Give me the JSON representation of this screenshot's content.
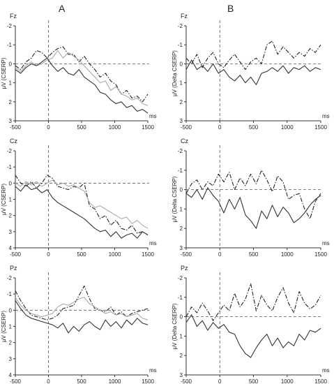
{
  "columns": [
    {
      "label": "A"
    },
    {
      "label": "B"
    }
  ],
  "chart_data": [
    {
      "type": "line",
      "column": "A",
      "channel": "Fz",
      "ylabel": "μV (CSERP)",
      "xunit": "ms",
      "xlim": [
        -500,
        1500
      ],
      "ylim": [
        -2,
        3
      ],
      "y_inverted": true,
      "yticks": [
        -2,
        -1,
        0,
        1,
        2,
        3
      ],
      "xticks": [
        -500,
        0,
        500,
        1000,
        1500
      ],
      "series": [
        {
          "style": "dashdot",
          "color": "#222222",
          "x": [
            -500,
            -420,
            -340,
            -260,
            -180,
            -100,
            -20,
            60,
            140,
            220,
            300,
            380,
            460,
            540,
            620,
            700,
            780,
            860,
            940,
            1020,
            1100,
            1180,
            1260,
            1340,
            1420,
            1500
          ],
          "y": [
            0.1,
            0.3,
            -0.1,
            -0.3,
            -0.7,
            -0.6,
            -0.3,
            -0.6,
            -0.8,
            -0.9,
            -0.5,
            -0.5,
            -0.1,
            -0.4,
            0.0,
            0.3,
            0.7,
            0.5,
            0.9,
            1.1,
            1.6,
            1.4,
            1.8,
            1.7,
            2.0,
            1.6
          ]
        },
        {
          "style": "solid",
          "color": "#aaaaaa",
          "x": [
            -500,
            -420,
            -340,
            -260,
            -180,
            -100,
            -20,
            60,
            140,
            220,
            300,
            380,
            460,
            540,
            620,
            700,
            780,
            860,
            940,
            1020,
            1100,
            1180,
            1260,
            1340,
            1420,
            1500
          ],
          "y": [
            0.2,
            0.4,
            0.1,
            -0.1,
            0.1,
            0.0,
            -0.2,
            -0.3,
            -0.7,
            -0.3,
            -0.6,
            -0.4,
            -0.2,
            0.1,
            0.4,
            0.7,
            1.0,
            0.9,
            1.4,
            1.2,
            1.6,
            1.7,
            1.9,
            1.8,
            2.1,
            2.2
          ]
        },
        {
          "style": "solid",
          "color": "#333333",
          "x": [
            -500,
            -420,
            -340,
            -260,
            -180,
            -100,
            -20,
            60,
            140,
            220,
            300,
            380,
            460,
            540,
            620,
            700,
            780,
            860,
            940,
            1020,
            1100,
            1180,
            1260,
            1340,
            1420,
            1500
          ],
          "y": [
            0.3,
            0.5,
            0.2,
            0.0,
            0.1,
            -0.1,
            -0.3,
            0.1,
            0.4,
            0.2,
            0.5,
            0.6,
            0.3,
            0.7,
            0.9,
            1.1,
            1.5,
            1.6,
            1.9,
            2.1,
            2.0,
            2.3,
            2.2,
            2.5,
            2.4,
            2.6
          ]
        }
      ]
    },
    {
      "type": "line",
      "column": "A",
      "channel": "Cz",
      "ylabel": "μV (CSERP)",
      "xunit": "ms",
      "xlim": [
        -500,
        1500
      ],
      "ylim": [
        -2,
        4
      ],
      "y_inverted": true,
      "yticks": [
        -2,
        -1,
        0,
        1,
        2,
        3,
        4
      ],
      "xticks": [
        -500,
        0,
        500,
        1000,
        1500
      ],
      "series": [
        {
          "style": "dashdot",
          "color": "#222222",
          "x": [
            -500,
            -420,
            -340,
            -260,
            -180,
            -100,
            -20,
            60,
            140,
            220,
            300,
            380,
            460,
            540,
            620,
            700,
            780,
            860,
            940,
            1020,
            1100,
            1180,
            1260,
            1340,
            1420,
            1500
          ],
          "y": [
            -0.5,
            0.0,
            0.2,
            -0.1,
            0.3,
            0.0,
            -0.5,
            -0.3,
            0.2,
            0.3,
            0.4,
            0.2,
            0.3,
            0.0,
            1.4,
            1.6,
            2.2,
            2.0,
            2.6,
            2.3,
            2.8,
            2.9,
            2.6,
            3.1,
            3.0,
            3.2
          ]
        },
        {
          "style": "solid",
          "color": "#aaaaaa",
          "x": [
            -500,
            -420,
            -340,
            -260,
            -180,
            -100,
            -20,
            60,
            140,
            220,
            300,
            380,
            460,
            540,
            620,
            700,
            780,
            860,
            940,
            1020,
            1100,
            1180,
            1260,
            1340,
            1420,
            1500
          ],
          "y": [
            0.0,
            0.2,
            -0.1,
            0.1,
            -0.1,
            0.2,
            0.0,
            -0.2,
            0.1,
            0.0,
            0.2,
            0.1,
            0.3,
            0.5,
            1.2,
            1.5,
            1.4,
            1.6,
            1.8,
            2.0,
            2.2,
            2.1,
            2.5,
            2.3,
            2.6,
            2.8
          ]
        },
        {
          "style": "solid",
          "color": "#333333",
          "x": [
            -500,
            -420,
            -340,
            -260,
            -180,
            -100,
            -20,
            60,
            140,
            220,
            300,
            380,
            460,
            540,
            620,
            700,
            780,
            860,
            940,
            1020,
            1100,
            1180,
            1260,
            1340,
            1420,
            1500
          ],
          "y": [
            0.2,
            0.5,
            0.1,
            0.4,
            0.3,
            0.6,
            0.4,
            0.9,
            1.2,
            1.4,
            1.6,
            1.8,
            2.0,
            2.2,
            2.5,
            2.8,
            3.0,
            2.9,
            3.3,
            3.0,
            3.4,
            3.2,
            3.1,
            3.4,
            3.0,
            3.2
          ]
        }
      ]
    },
    {
      "type": "line",
      "column": "A",
      "channel": "Pz",
      "ylabel": "μV (CSERP)",
      "xunit": "ms",
      "xlim": [
        -500,
        1500
      ],
      "ylim": [
        -2,
        4
      ],
      "y_inverted": true,
      "yticks": [
        -2,
        -1,
        0,
        1,
        2,
        3,
        4
      ],
      "xticks": [
        -500,
        0,
        500,
        1000,
        1500
      ],
      "series": [
        {
          "style": "dashdot",
          "color": "#222222",
          "x": [
            -500,
            -420,
            -340,
            -260,
            -180,
            -100,
            -20,
            60,
            140,
            220,
            300,
            380,
            460,
            540,
            620,
            700,
            780,
            860,
            940,
            1020,
            1100,
            1180,
            1260,
            1340,
            1420,
            1500
          ],
          "y": [
            -1.2,
            -0.6,
            -0.1,
            0.3,
            0.4,
            0.5,
            0.6,
            0.5,
            0.3,
            -0.1,
            -0.2,
            -0.3,
            -0.9,
            -1.5,
            -0.7,
            -0.1,
            0.0,
            0.1,
            -0.2,
            0.3,
            0.1,
            0.4,
            0.2,
            0.1,
            0.0,
            -0.1
          ]
        },
        {
          "style": "solid",
          "color": "#aaaaaa",
          "x": [
            -500,
            -420,
            -340,
            -260,
            -180,
            -100,
            -20,
            60,
            140,
            220,
            300,
            380,
            460,
            540,
            620,
            700,
            780,
            860,
            940,
            1020,
            1100,
            1180,
            1260,
            1340,
            1420,
            1500
          ],
          "y": [
            -0.8,
            -0.3,
            0.0,
            0.2,
            0.3,
            0.4,
            0.3,
            0.2,
            -0.2,
            -0.4,
            -0.3,
            -0.5,
            -0.7,
            -0.8,
            -0.4,
            -0.2,
            0.0,
            0.2,
            0.1,
            0.3,
            0.2,
            0.4,
            0.3,
            0.2,
            0.5,
            0.6
          ]
        },
        {
          "style": "solid",
          "color": "#333333",
          "x": [
            -500,
            -420,
            -340,
            -260,
            -180,
            -100,
            -20,
            60,
            140,
            220,
            300,
            380,
            460,
            540,
            620,
            700,
            780,
            860,
            940,
            1020,
            1100,
            1180,
            1260,
            1340,
            1420,
            1500
          ],
          "y": [
            -0.6,
            -0.1,
            0.3,
            0.5,
            0.6,
            0.7,
            0.8,
            0.9,
            1.1,
            0.8,
            1.4,
            1.0,
            1.3,
            0.9,
            0.7,
            1.0,
            1.2,
            0.6,
            1.0,
            0.7,
            1.1,
            0.6,
            0.9,
            0.5,
            0.8,
            0.9
          ]
        }
      ]
    },
    {
      "type": "line",
      "column": "B",
      "channel": "Fz",
      "ylabel": "μV (Delta CSERP)",
      "xunit": "ms",
      "xlim": [
        -500,
        1500
      ],
      "ylim": [
        -2,
        3
      ],
      "y_inverted": true,
      "yticks": [
        -2,
        -1,
        0,
        1,
        2,
        3
      ],
      "xticks": [
        -500,
        0,
        500,
        1000,
        1500
      ],
      "series": [
        {
          "style": "dashdot",
          "color": "#222222",
          "x": [
            -500,
            -420,
            -340,
            -260,
            -180,
            -100,
            -20,
            60,
            140,
            220,
            300,
            380,
            460,
            540,
            620,
            700,
            780,
            860,
            940,
            1020,
            1100,
            1180,
            1260,
            1340,
            1420,
            1500
          ],
          "y": [
            -0.3,
            0.0,
            -0.5,
            0.2,
            -0.3,
            -0.6,
            0.0,
            0.2,
            -0.2,
            -0.5,
            -0.1,
            0.3,
            -0.1,
            -0.3,
            0.0,
            -1.0,
            -1.2,
            -0.5,
            -0.9,
            -0.6,
            -0.3,
            -0.6,
            -0.4,
            -0.8,
            -0.6,
            -1.0
          ]
        },
        {
          "style": "solid",
          "color": "#333333",
          "x": [
            -500,
            -420,
            -340,
            -260,
            -180,
            -100,
            -20,
            60,
            140,
            220,
            300,
            380,
            460,
            540,
            620,
            700,
            780,
            860,
            940,
            1020,
            1100,
            1180,
            1260,
            1340,
            1420,
            1500
          ],
          "y": [
            0.3,
            -0.2,
            0.3,
            0.1,
            0.4,
            0.0,
            0.5,
            0.3,
            0.7,
            0.9,
            0.6,
            1.0,
            0.7,
            1.1,
            0.5,
            0.4,
            0.2,
            0.4,
            0.1,
            0.5,
            0.2,
            0.3,
            0.1,
            0.4,
            0.2,
            0.3
          ]
        }
      ]
    },
    {
      "type": "line",
      "column": "B",
      "channel": "Cz",
      "ylabel": "μV (Delta CSERP)",
      "xunit": "ms",
      "xlim": [
        -500,
        1500
      ],
      "ylim": [
        -2,
        3
      ],
      "y_inverted": true,
      "yticks": [
        -2,
        -1,
        0,
        1,
        2,
        3
      ],
      "xticks": [
        -500,
        0,
        500,
        1000,
        1500
      ],
      "series": [
        {
          "style": "dashdot",
          "color": "#222222",
          "x": [
            -500,
            -420,
            -340,
            -260,
            -180,
            -100,
            -20,
            60,
            140,
            220,
            300,
            380,
            460,
            540,
            620,
            700,
            780,
            860,
            940,
            1020,
            1100,
            1180,
            1260,
            1340,
            1420,
            1500
          ],
          "y": [
            0.2,
            -0.3,
            -0.5,
            0.0,
            -0.4,
            -0.2,
            -0.8,
            -0.4,
            -0.9,
            0.0,
            -0.6,
            -0.2,
            -0.8,
            -0.3,
            -1.0,
            -0.5,
            0.1,
            -0.7,
            -0.4,
            0.5,
            0.3,
            0.2,
            1.0,
            1.5,
            0.6,
            0.2
          ]
        },
        {
          "style": "solid",
          "color": "#333333",
          "x": [
            -500,
            -420,
            -340,
            -260,
            -180,
            -100,
            -20,
            60,
            140,
            220,
            300,
            380,
            460,
            540,
            620,
            700,
            780,
            860,
            940,
            1020,
            1100,
            1180,
            1260,
            1340,
            1420,
            1500
          ],
          "y": [
            0.2,
            0.4,
            0.0,
            0.5,
            -0.1,
            0.3,
            0.6,
            1.2,
            0.5,
            1.0,
            0.4,
            1.3,
            1.6,
            2.0,
            1.1,
            1.5,
            0.8,
            1.4,
            0.9,
            1.2,
            1.7,
            1.5,
            1.2,
            0.8,
            0.5,
            0.3
          ]
        }
      ]
    },
    {
      "type": "line",
      "column": "B",
      "channel": "Pz",
      "ylabel": "μV (Delta CSERP)",
      "xunit": "ms",
      "xlim": [
        -500,
        1500
      ],
      "ylim": [
        -2,
        3
      ],
      "y_inverted": true,
      "yticks": [
        -2,
        -1,
        0,
        1,
        2,
        3
      ],
      "xticks": [
        -500,
        0,
        500,
        1000,
        1500
      ],
      "series": [
        {
          "style": "dashdot",
          "color": "#222222",
          "x": [
            -500,
            -420,
            -340,
            -260,
            -180,
            -100,
            -20,
            60,
            140,
            220,
            300,
            380,
            460,
            540,
            620,
            700,
            780,
            860,
            940,
            1020,
            1100,
            1180,
            1260,
            1340,
            1420,
            1500
          ],
          "y": [
            0.0,
            -0.5,
            -0.2,
            -0.7,
            -0.3,
            0.2,
            -0.2,
            -0.6,
            -0.3,
            -1.2,
            -0.5,
            -0.9,
            -1.7,
            -0.3,
            -1.1,
            -0.6,
            -0.3,
            -1.0,
            -1.5,
            -0.7,
            -0.2,
            -1.3,
            -0.7,
            -0.4,
            -0.6,
            -1.1
          ]
        },
        {
          "style": "solid",
          "color": "#333333",
          "x": [
            -500,
            -420,
            -340,
            -260,
            -180,
            -100,
            -20,
            60,
            140,
            220,
            300,
            380,
            460,
            540,
            620,
            700,
            780,
            860,
            940,
            1020,
            1100,
            1180,
            1260,
            1340,
            1420,
            1500
          ],
          "y": [
            0.3,
            -0.1,
            0.5,
            0.2,
            0.7,
            0.3,
            0.6,
            0.4,
            0.8,
            0.9,
            1.5,
            1.9,
            2.1,
            1.6,
            1.2,
            0.9,
            1.5,
            1.1,
            1.6,
            1.3,
            1.5,
            0.9,
            1.2,
            0.7,
            0.8,
            0.6
          ]
        }
      ]
    }
  ]
}
